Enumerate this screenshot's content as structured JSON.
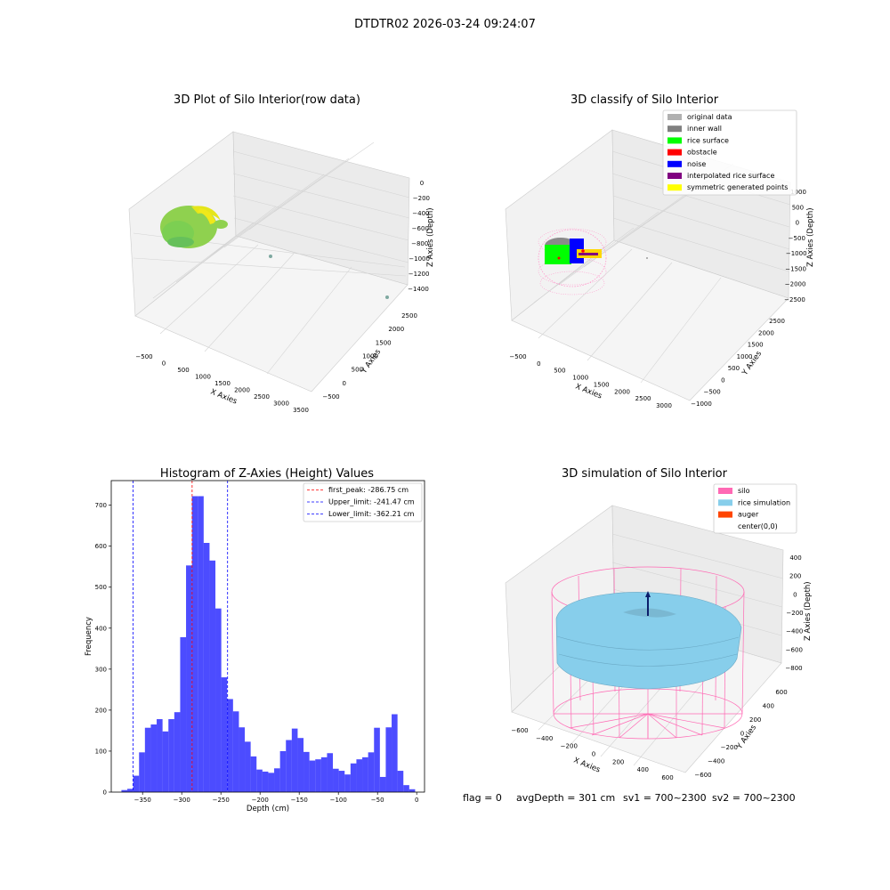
{
  "suptitle": "DTDTR02 2026-03-24 09:24:07",
  "panels": {
    "raw": {
      "title": "3D Plot of Silo Interior(row data)",
      "xlabel": "X Axies",
      "ylabel": "Y Axies",
      "zlabel": "Z Axies (Depth)",
      "xticks": [
        "−500",
        "0",
        "500",
        "1000",
        "1500",
        "2000",
        "2500",
        "3000",
        "3500"
      ],
      "yticks": [
        "−500",
        "0",
        "500",
        "1000",
        "1500",
        "2000",
        "2500"
      ],
      "zticks": [
        "0",
        "−200",
        "−400",
        "−600",
        "−800",
        "−1000",
        "−1200",
        "−1400"
      ]
    },
    "classify": {
      "title": "3D classify of Silo Interior",
      "xlabel": "X Axies",
      "ylabel": "Y Axies",
      "zlabel": "Z Axies (Depth)",
      "xticks": [
        "−500",
        "0",
        "500",
        "1000",
        "1500",
        "2000",
        "2500",
        "3000"
      ],
      "yticks": [
        "−1000",
        "−500",
        "0",
        "500",
        "1000",
        "1500",
        "2000",
        "2500"
      ],
      "zticks": [
        "1000",
        "500",
        "0",
        "−500",
        "−1000",
        "−1500",
        "−2000",
        "−2500"
      ],
      "legend": [
        {
          "label": "original data",
          "color": "#b0b0b0"
        },
        {
          "label": "inner wall",
          "color": "#808080"
        },
        {
          "label": "rice surface",
          "color": "#00ff00"
        },
        {
          "label": "obstacle",
          "color": "#ff0000"
        },
        {
          "label": "noise",
          "color": "#0000ff"
        },
        {
          "label": "interpolated rice surface",
          "color": "#800080"
        },
        {
          "label": "symmetric generated points",
          "color": "#ffff00"
        }
      ]
    },
    "simulation": {
      "title": "3D simulation of Silo Interior",
      "xlabel": "X Axies",
      "ylabel": "Y Axies",
      "zlabel": "Z Axies (Depth)",
      "xticks": [
        "−600",
        "−400",
        "−200",
        "0",
        "200",
        "400",
        "600"
      ],
      "yticks": [
        "−600",
        "−400",
        "−200",
        "0",
        "200",
        "400",
        "600"
      ],
      "zticks": [
        "400",
        "200",
        "0",
        "−200",
        "−400",
        "−600",
        "−800"
      ],
      "legend": [
        {
          "label": "silo",
          "color": "#ff69b4"
        },
        {
          "label": "rice simulation",
          "color": "#87ceeb"
        },
        {
          "label": "auger",
          "color": "#ff4500"
        },
        {
          "label": "center(0,0)",
          "color": ""
        }
      ]
    }
  },
  "status": {
    "flag": "flag = 0",
    "avg_depth": "avgDepth = 301 cm",
    "sv1": "sv1 = 700~2300",
    "sv2": "sv2 = 700~2300"
  },
  "chart_data": {
    "type": "bar",
    "title": "Histogram of Z-Axies (Height) Values",
    "xlabel": "Depth (cm)",
    "ylabel": "Frequency",
    "xlim": [
      -390,
      10
    ],
    "ylim": [
      0,
      760
    ],
    "xticks": [
      -350,
      -300,
      -250,
      -200,
      -150,
      -100,
      -50,
      0
    ],
    "yticks": [
      0,
      100,
      200,
      300,
      400,
      500,
      600,
      700
    ],
    "bin_start": -377,
    "bin_width": 7.5,
    "values": [
      5,
      8,
      40,
      97,
      157,
      165,
      178,
      148,
      178,
      195,
      378,
      553,
      722,
      722,
      608,
      565,
      448,
      280,
      227,
      197,
      158,
      123,
      87,
      55,
      50,
      47,
      58,
      100,
      127,
      155,
      132,
      98,
      77,
      80,
      85,
      95,
      57,
      52,
      43,
      70,
      80,
      85,
      97,
      157,
      37,
      158,
      190,
      52,
      17,
      7
    ],
    "bar_color": "#0000ff",
    "lines": [
      {
        "label": "first_peak: -286.75 cm",
        "x": -286.75,
        "color": "#ff0000"
      },
      {
        "label": "Upper_limit: -241.47 cm",
        "x": -241.47,
        "color": "#0000ff"
      },
      {
        "label": "Lower_limit: -362.21 cm",
        "x": -362.21,
        "color": "#0000ff"
      }
    ],
    "legend_position": "top-right"
  }
}
